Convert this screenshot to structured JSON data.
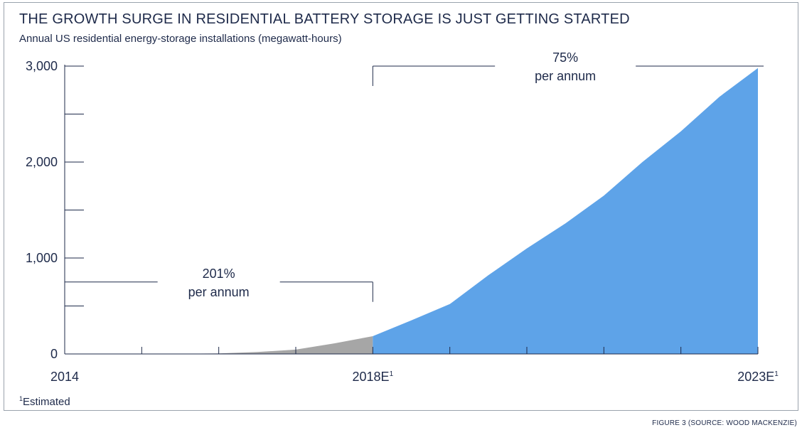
{
  "header": {
    "title": "THE GROWTH SURGE IN RESIDENTIAL BATTERY STORAGE IS JUST GETTING STARTED",
    "subtitle": "Annual US residential energy-storage installations (megawatt-hours)"
  },
  "footnote": {
    "marker": "1",
    "text": "Estimated"
  },
  "source": "FIGURE 3 (SOURCE: WOOD MACKENZIE)",
  "chart_data": {
    "type": "area",
    "title": "THE GROWTH SURGE IN RESIDENTIAL BATTERY STORAGE IS JUST GETTING STARTED",
    "subtitle": "Annual US residential energy-storage installations (megawatt-hours)",
    "ylim": [
      0,
      3000
    ],
    "xlim": [
      2014,
      2023
    ],
    "y_ticks": [
      {
        "value": 0,
        "label": "0"
      },
      {
        "value": 1000,
        "label": "1,000"
      },
      {
        "value": 2000,
        "label": "2,000"
      },
      {
        "value": 3000,
        "label": "3,000"
      }
    ],
    "x_tick_labels": [
      {
        "value": 2014,
        "label": "2014",
        "sup": ""
      },
      {
        "value": 2018,
        "label": "2018E",
        "sup": "1"
      },
      {
        "value": 2023,
        "label": "2023E",
        "sup": "1"
      }
    ],
    "series": [
      {
        "role": "historical",
        "color": "#a6a6a6",
        "points": [
          [
            2014,
            0
          ],
          [
            2015,
            0
          ],
          [
            2015.5,
            2
          ],
          [
            2016,
            6
          ],
          [
            2016.5,
            20
          ],
          [
            2017,
            45
          ],
          [
            2017.5,
            110
          ],
          [
            2018,
            185
          ]
        ]
      },
      {
        "role": "estimated",
        "color": "#5ea3e8",
        "points": [
          [
            2018,
            185
          ],
          [
            2018.5,
            350
          ],
          [
            2019,
            520
          ],
          [
            2019.5,
            820
          ],
          [
            2020,
            1100
          ],
          [
            2020.5,
            1360
          ],
          [
            2021,
            1650
          ],
          [
            2021.5,
            2000
          ],
          [
            2022,
            2320
          ],
          [
            2022.5,
            2680
          ],
          [
            2023,
            2980
          ]
        ]
      }
    ],
    "annotations": [
      {
        "pct": "201%",
        "text": "per annum",
        "from": 2014,
        "to": 2018,
        "level": 750
      },
      {
        "pct": "75%",
        "text": "per annum",
        "from": 2018,
        "to": 2023,
        "level": 3000
      }
    ],
    "grid": false
  }
}
